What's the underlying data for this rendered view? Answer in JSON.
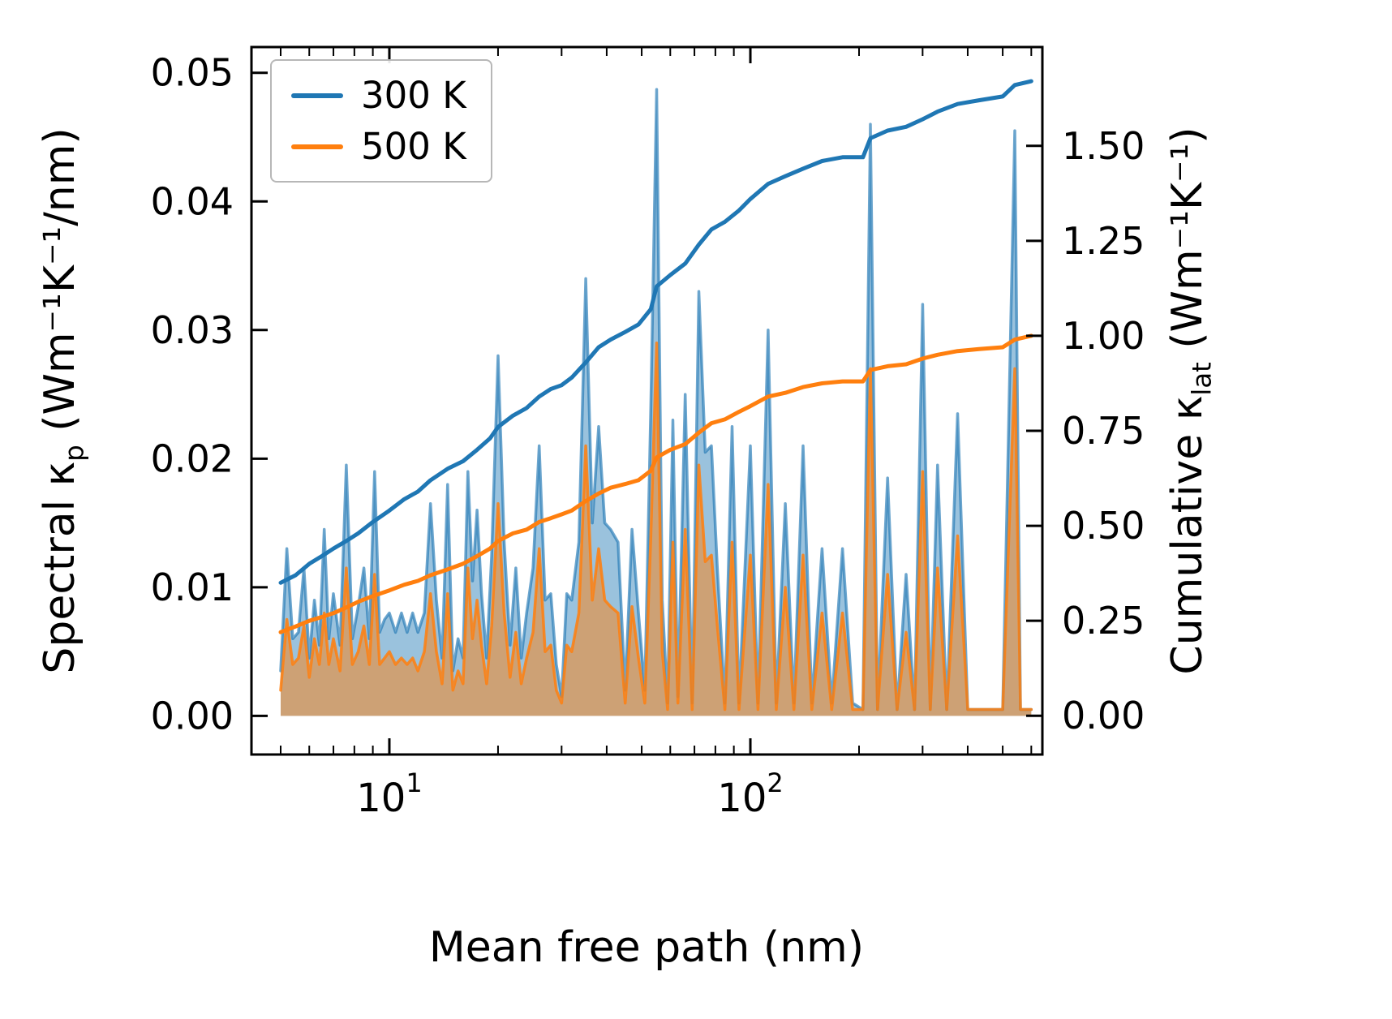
{
  "chart_data": {
    "type": "line",
    "x_scale": "log",
    "xlabel": "Mean free path (nm)",
    "ylabel_left": {
      "pre": "Spectral κ",
      "sub": "p",
      "post": " (Wm⁻¹K⁻¹/nm)"
    },
    "ylabel_right": {
      "pre": "Cumulative κ",
      "sub": "lat",
      "post": " (Wm⁻¹K⁻¹)"
    },
    "xlim": [
      4.15,
      644
    ],
    "ylim_left": [
      -0.003,
      0.052
    ],
    "ylim_right": [
      -0.102,
      1.76
    ],
    "grid": false,
    "legend_position": "upper-left",
    "legend": [
      {
        "label": "300 K",
        "color": "#1f77b4"
      },
      {
        "label": "500 K",
        "color": "#ff7f0e"
      }
    ],
    "colors": {
      "blue": "#1f77b4",
      "orange": "#ff7f0e",
      "spine": "#000000"
    },
    "x_ticks": [
      {
        "value": 10,
        "base": "10",
        "exp": "1",
        "label": "10¹"
      },
      {
        "value": 100,
        "base": "10",
        "exp": "2",
        "label": "10²"
      }
    ],
    "x_minor_ticks": [
      5,
      6,
      7,
      8,
      9,
      20,
      30,
      40,
      50,
      60,
      70,
      80,
      90,
      200,
      300,
      400,
      500,
      600
    ],
    "y_ticks_left": [
      {
        "value": 0.0,
        "label": "0.00"
      },
      {
        "value": 0.01,
        "label": "0.01"
      },
      {
        "value": 0.02,
        "label": "0.02"
      },
      {
        "value": 0.03,
        "label": "0.03"
      },
      {
        "value": 0.04,
        "label": "0.04"
      },
      {
        "value": 0.05,
        "label": "0.05"
      }
    ],
    "y_ticks_right": [
      {
        "value": 0.0,
        "label": "0.00"
      },
      {
        "value": 0.25,
        "label": "0.25"
      },
      {
        "value": 0.5,
        "label": "0.50"
      },
      {
        "value": 0.75,
        "label": "0.75"
      },
      {
        "value": 1.0,
        "label": "1.00"
      },
      {
        "value": 1.25,
        "label": "1.25"
      },
      {
        "value": 1.5,
        "label": "1.50"
      }
    ],
    "spectral": {
      "axis": "left",
      "x": [
        5.0,
        5.2,
        5.4,
        5.6,
        5.8,
        6.0,
        6.2,
        6.4,
        6.6,
        6.8,
        7.0,
        7.3,
        7.6,
        7.9,
        8.2,
        8.5,
        8.8,
        9.1,
        9.4,
        9.7,
        10.0,
        10.4,
        10.8,
        11.2,
        11.6,
        12.0,
        12.5,
        13.0,
        13.5,
        14.0,
        14.5,
        15.0,
        15.5,
        16.0,
        16.5,
        17.0,
        17.5,
        18.0,
        18.6,
        19.2,
        20.0,
        20.8,
        21.6,
        22.4,
        23.2,
        24.0,
        25.0,
        26.0,
        27.0,
        28.0,
        29.0,
        30.0,
        31.0,
        32.0,
        33.5,
        35.0,
        36.5,
        38.0,
        39.5,
        41.0,
        43.0,
        45.0,
        47.0,
        49.0,
        51.0,
        53.0,
        55.0,
        57.0,
        59.0,
        61.0,
        63.0,
        66.0,
        69.0,
        72.0,
        75.0,
        78.0,
        81.0,
        85.0,
        89.0,
        93.0,
        100.0,
        105.0,
        112.0,
        118.0,
        125.0,
        132.0,
        140.0,
        148.0,
        158.0,
        168.0,
        180.0,
        192.0,
        205.0,
        215.0,
        225.0,
        240.0,
        255.0,
        270.0,
        285.0,
        300.0,
        315.0,
        330.0,
        350.0,
        375.0,
        400.0,
        430.0,
        460.0,
        500.0,
        540.0,
        560.0,
        600.0
      ],
      "k300": [
        0.0035,
        0.013,
        0.006,
        0.0065,
        0.0115,
        0.0045,
        0.009,
        0.0055,
        0.0145,
        0.006,
        0.0095,
        0.0055,
        0.0195,
        0.006,
        0.0085,
        0.0115,
        0.006,
        0.019,
        0.0065,
        0.0075,
        0.008,
        0.0065,
        0.008,
        0.0065,
        0.008,
        0.0065,
        0.008,
        0.0165,
        0.009,
        0.0045,
        0.018,
        0.0035,
        0.006,
        0.0045,
        0.019,
        0.0105,
        0.016,
        0.0095,
        0.0045,
        0.0125,
        0.028,
        0.0135,
        0.0055,
        0.0115,
        0.0045,
        0.008,
        0.0115,
        0.021,
        0.009,
        0.0095,
        0.004,
        0.0015,
        0.0095,
        0.009,
        0.0135,
        0.034,
        0.015,
        0.0225,
        0.015,
        0.0145,
        0.0135,
        0.002,
        0.0145,
        0.008,
        0.002,
        0.024,
        0.0487,
        0.009,
        0.001,
        0.023,
        0.0015,
        0.025,
        0.001,
        0.033,
        0.0205,
        0.021,
        0.0115,
        0.001,
        0.0225,
        0.001,
        0.021,
        0.001,
        0.03,
        0.001,
        0.0165,
        0.001,
        0.021,
        0.001,
        0.013,
        0.001,
        0.013,
        0.001,
        0.0005,
        0.046,
        0.0005,
        0.0185,
        0.0005,
        0.011,
        0.0005,
        0.032,
        0.0005,
        0.0195,
        0.0005,
        0.0235,
        0.0005,
        0.0005,
        0.0005,
        0.0005,
        0.0455,
        0.0005,
        0.0005
      ],
      "k500": [
        0.002,
        0.0075,
        0.004,
        0.0045,
        0.007,
        0.003,
        0.006,
        0.004,
        0.008,
        0.004,
        0.006,
        0.0035,
        0.0115,
        0.004,
        0.005,
        0.007,
        0.004,
        0.011,
        0.004,
        0.0045,
        0.005,
        0.004,
        0.0045,
        0.004,
        0.0045,
        0.0035,
        0.005,
        0.0095,
        0.005,
        0.0025,
        0.0095,
        0.002,
        0.0035,
        0.0025,
        0.0115,
        0.006,
        0.009,
        0.0055,
        0.0025,
        0.007,
        0.0165,
        0.008,
        0.003,
        0.0065,
        0.0025,
        0.0045,
        0.0065,
        0.013,
        0.005,
        0.0055,
        0.002,
        0.001,
        0.0055,
        0.005,
        0.008,
        0.021,
        0.009,
        0.013,
        0.009,
        0.0085,
        0.008,
        0.001,
        0.0085,
        0.0045,
        0.001,
        0.014,
        0.029,
        0.005,
        0.0005,
        0.0135,
        0.001,
        0.0145,
        0.0005,
        0.0195,
        0.012,
        0.0125,
        0.007,
        0.0005,
        0.0135,
        0.0005,
        0.0125,
        0.0005,
        0.018,
        0.0005,
        0.01,
        0.0005,
        0.0125,
        0.0005,
        0.008,
        0.0005,
        0.008,
        0.0005,
        0.0005,
        0.027,
        0.0005,
        0.011,
        0.0005,
        0.0065,
        0.0005,
        0.019,
        0.0005,
        0.0115,
        0.0005,
        0.014,
        0.0005,
        0.0005,
        0.0005,
        0.0005,
        0.027,
        0.0005,
        0.0005
      ]
    },
    "cumulative": {
      "axis": "right",
      "x": [
        5,
        5.5,
        6,
        6.5,
        7,
        7.6,
        8.2,
        9,
        10,
        11,
        12,
        13,
        14.5,
        16,
        17.5,
        19,
        20,
        22,
        24,
        26,
        28,
        30,
        32,
        35,
        38,
        41,
        45,
        49,
        53,
        55,
        60,
        66,
        72,
        78,
        85,
        93,
        100,
        112,
        125,
        140,
        158,
        180,
        205,
        215,
        240,
        270,
        300,
        330,
        375,
        430,
        500,
        540,
        600
      ],
      "k300": [
        0.35,
        0.37,
        0.4,
        0.42,
        0.44,
        0.46,
        0.48,
        0.51,
        0.54,
        0.57,
        0.59,
        0.62,
        0.65,
        0.67,
        0.7,
        0.73,
        0.76,
        0.79,
        0.81,
        0.84,
        0.86,
        0.87,
        0.89,
        0.93,
        0.97,
        0.99,
        1.01,
        1.03,
        1.07,
        1.13,
        1.16,
        1.19,
        1.24,
        1.28,
        1.3,
        1.33,
        1.36,
        1.4,
        1.42,
        1.44,
        1.46,
        1.47,
        1.47,
        1.52,
        1.54,
        1.55,
        1.57,
        1.59,
        1.61,
        1.62,
        1.63,
        1.66,
        1.67
      ],
      "k500": [
        0.22,
        0.235,
        0.25,
        0.26,
        0.27,
        0.285,
        0.3,
        0.315,
        0.33,
        0.345,
        0.355,
        0.37,
        0.385,
        0.4,
        0.42,
        0.44,
        0.46,
        0.48,
        0.49,
        0.51,
        0.52,
        0.53,
        0.54,
        0.565,
        0.585,
        0.6,
        0.61,
        0.62,
        0.645,
        0.68,
        0.7,
        0.715,
        0.745,
        0.77,
        0.78,
        0.8,
        0.815,
        0.84,
        0.85,
        0.865,
        0.875,
        0.88,
        0.88,
        0.91,
        0.92,
        0.925,
        0.94,
        0.95,
        0.96,
        0.965,
        0.97,
        0.99,
        1.0
      ]
    }
  }
}
